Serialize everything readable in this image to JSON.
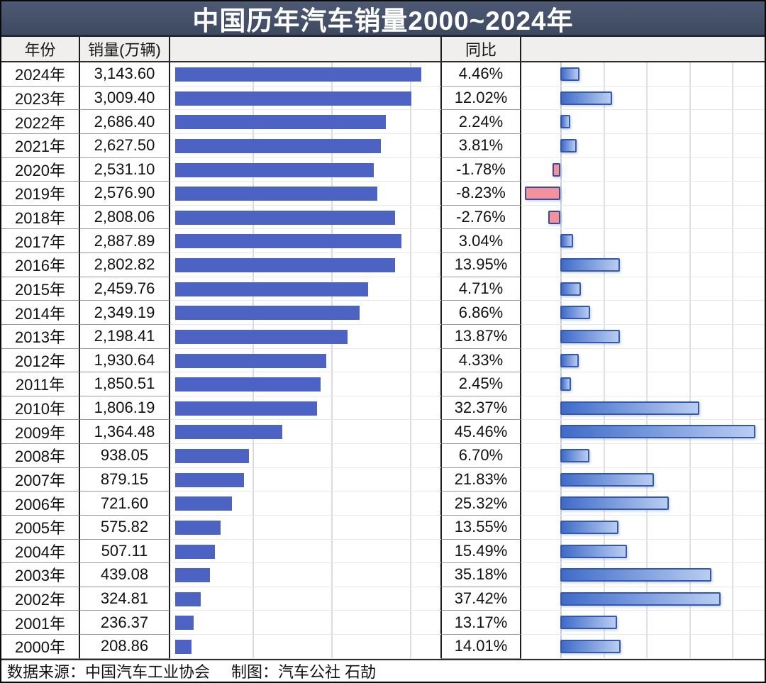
{
  "title": "中国历年汽车销量2000~2024年",
  "columns": {
    "year": "年份",
    "sales": "销量(万辆)",
    "sales_chart": "",
    "yoy": "同比",
    "yoy_chart": ""
  },
  "footer": {
    "source": "数据来源：中国汽车工业协会",
    "credit": "制图：汽车公社 石劼"
  },
  "colors": {
    "banner_bg": "#455169",
    "banner_text": "#ffffff",
    "header_bg": "#f0efed",
    "sales_bar": "#4d63c4",
    "yoy_bar_border": "#3558ad",
    "yoy_bar_fill_start": "#3f6bc9",
    "yoy_bar_fill_end": "#b9cdf0",
    "yoy_negative_fill": "#f2929c",
    "gridline": "#d9dde3",
    "text": "#111111"
  },
  "chart_data": {
    "type": "bar",
    "orientation": "horizontal",
    "title": "中国历年汽车销量2000~2024年",
    "categories": [
      "2024年",
      "2023年",
      "2022年",
      "2021年",
      "2020年",
      "2019年",
      "2018年",
      "2017年",
      "2016年",
      "2015年",
      "2014年",
      "2013年",
      "2012年",
      "2011年",
      "2010年",
      "2009年",
      "2008年",
      "2007年",
      "2006年",
      "2005年",
      "2004年",
      "2003年",
      "2002年",
      "2001年",
      "2000年"
    ],
    "series": [
      {
        "name": "销量(万辆)",
        "values": [
          3143.6,
          3009.4,
          2686.4,
          2627.5,
          2531.1,
          2576.9,
          2808.06,
          2887.89,
          2802.82,
          2459.76,
          2349.19,
          2198.41,
          1930.64,
          1850.51,
          1806.19,
          1364.48,
          938.05,
          879.15,
          721.6,
          575.82,
          507.11,
          439.08,
          324.81,
          236.37,
          208.86
        ]
      },
      {
        "name": "同比(%)",
        "values": [
          4.46,
          12.02,
          2.24,
          3.81,
          -1.78,
          -8.23,
          -2.76,
          3.04,
          13.95,
          4.71,
          6.86,
          13.87,
          4.33,
          2.45,
          32.37,
          45.46,
          6.7,
          21.83,
          25.32,
          13.55,
          15.49,
          35.18,
          37.42,
          13.17,
          14.01
        ]
      }
    ],
    "sales_axis": {
      "gridline_interval": 1000,
      "gridlines": [
        1000,
        2000,
        3000
      ],
      "min": 0
    },
    "yoy_axis": {
      "gridline_interval": 10,
      "gridlines": [
        0,
        10,
        20,
        30,
        40
      ],
      "unit": "%"
    },
    "grid": true,
    "legend": false
  },
  "rows": [
    {
      "year": "2024年",
      "sales": "3,143.60",
      "yoy": "4.46%",
      "sales_value": 3143.6,
      "yoy_value": 4.46
    },
    {
      "year": "2023年",
      "sales": "3,009.40",
      "yoy": "12.02%",
      "sales_value": 3009.4,
      "yoy_value": 12.02
    },
    {
      "year": "2022年",
      "sales": "2,686.40",
      "yoy": "2.24%",
      "sales_value": 2686.4,
      "yoy_value": 2.24
    },
    {
      "year": "2021年",
      "sales": "2,627.50",
      "yoy": "3.81%",
      "sales_value": 2627.5,
      "yoy_value": 3.81
    },
    {
      "year": "2020年",
      "sales": "2,531.10",
      "yoy": "-1.78%",
      "sales_value": 2531.1,
      "yoy_value": -1.78
    },
    {
      "year": "2019年",
      "sales": "2,576.90",
      "yoy": "-8.23%",
      "sales_value": 2576.9,
      "yoy_value": -8.23
    },
    {
      "year": "2018年",
      "sales": "2,808.06",
      "yoy": "-2.76%",
      "sales_value": 2808.06,
      "yoy_value": -2.76
    },
    {
      "year": "2017年",
      "sales": "2,887.89",
      "yoy": "3.04%",
      "sales_value": 2887.89,
      "yoy_value": 3.04
    },
    {
      "year": "2016年",
      "sales": "2,802.82",
      "yoy": "13.95%",
      "sales_value": 2802.82,
      "yoy_value": 13.95
    },
    {
      "year": "2015年",
      "sales": "2,459.76",
      "yoy": "4.71%",
      "sales_value": 2459.76,
      "yoy_value": 4.71
    },
    {
      "year": "2014年",
      "sales": "2,349.19",
      "yoy": "6.86%",
      "sales_value": 2349.19,
      "yoy_value": 6.86
    },
    {
      "year": "2013年",
      "sales": "2,198.41",
      "yoy": "13.87%",
      "sales_value": 2198.41,
      "yoy_value": 13.87
    },
    {
      "year": "2012年",
      "sales": "1,930.64",
      "yoy": "4.33%",
      "sales_value": 1930.64,
      "yoy_value": 4.33
    },
    {
      "year": "2011年",
      "sales": "1,850.51",
      "yoy": "2.45%",
      "sales_value": 1850.51,
      "yoy_value": 2.45
    },
    {
      "year": "2010年",
      "sales": "1,806.19",
      "yoy": "32.37%",
      "sales_value": 1806.19,
      "yoy_value": 32.37
    },
    {
      "year": "2009年",
      "sales": "1,364.48",
      "yoy": "45.46%",
      "sales_value": 1364.48,
      "yoy_value": 45.46
    },
    {
      "year": "2008年",
      "sales": "938.05",
      "yoy": "6.70%",
      "sales_value": 938.05,
      "yoy_value": 6.7
    },
    {
      "year": "2007年",
      "sales": "879.15",
      "yoy": "21.83%",
      "sales_value": 879.15,
      "yoy_value": 21.83
    },
    {
      "year": "2006年",
      "sales": "721.60",
      "yoy": "25.32%",
      "sales_value": 721.6,
      "yoy_value": 25.32
    },
    {
      "year": "2005年",
      "sales": "575.82",
      "yoy": "13.55%",
      "sales_value": 575.82,
      "yoy_value": 13.55
    },
    {
      "year": "2004年",
      "sales": "507.11",
      "yoy": "15.49%",
      "sales_value": 507.11,
      "yoy_value": 15.49
    },
    {
      "year": "2003年",
      "sales": "439.08",
      "yoy": "35.18%",
      "sales_value": 439.08,
      "yoy_value": 35.18
    },
    {
      "year": "2002年",
      "sales": "324.81",
      "yoy": "37.42%",
      "sales_value": 324.81,
      "yoy_value": 37.42
    },
    {
      "year": "2001年",
      "sales": "236.37",
      "yoy": "13.17%",
      "sales_value": 236.37,
      "yoy_value": 13.17
    },
    {
      "year": "2000年",
      "sales": "208.86",
      "yoy": "14.01%",
      "sales_value": 208.86,
      "yoy_value": 14.01
    }
  ]
}
